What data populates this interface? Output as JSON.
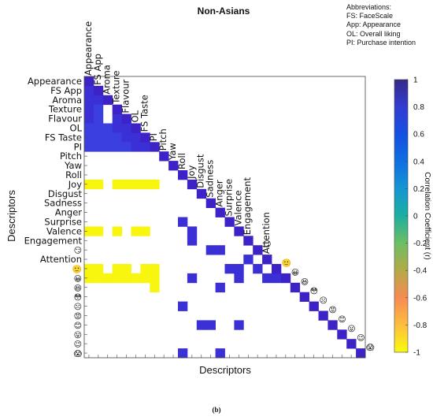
{
  "caption": "(b)",
  "abbreviations": {
    "heading": "Abbreviations:",
    "lines": [
      "FS: FaceScale",
      "App: Appearance",
      "OL: Overall liking",
      "PI: Purchase intention"
    ]
  },
  "chart_data": {
    "type": "heatmap",
    "title": "Non-Asians",
    "xlabel": "Descriptors",
    "ylabel": "Descriptors",
    "colorbar_label": "Correlation Coefficient (r)",
    "colorbar_ticks": [
      "1",
      "0.8",
      "0.6",
      "0.4",
      "0.2",
      "0",
      "-0.2",
      "-0.4",
      "-0.6",
      "-0.8",
      "-1"
    ],
    "clim": [
      -1,
      1
    ],
    "colormap": "parula",
    "descriptors": [
      "Appearance",
      "FS App",
      "Aroma",
      "Texture",
      "Flavour",
      "OL",
      "FS Taste",
      "PI",
      "Pitch",
      "Yaw",
      "Roll",
      "Joy",
      "Disgust",
      "Sadness",
      "Anger",
      "Surprise",
      "Valence",
      "Engagement",
      "emoji-smirk",
      "Attention",
      "emoji-smile",
      "emoji-grin",
      "emoji-laugh",
      "emoji-flushed",
      "emoji-frown",
      "emoji-angry",
      "emoji-smile2",
      "emoji-tongue",
      "emoji-wink",
      "emoji-scream"
    ],
    "emoji_descriptors": {
      "emoji-smirk": "😏",
      "emoji-smile": "🙂",
      "emoji-grin": "😀",
      "emoji-laugh": "😆",
      "emoji-flushed": "😳",
      "emoji-frown": "☹",
      "emoji-angry": "😡",
      "emoji-smile2": "😊",
      "emoji-tongue": "😛",
      "emoji-wink": "😉",
      "emoji-scream": "😱"
    },
    "cells": [
      [
        1,
        0,
        1
      ],
      [
        2,
        0,
        0.95
      ],
      [
        2,
        1,
        0.9
      ],
      [
        3,
        0,
        0.9
      ],
      [
        3,
        1,
        0.85
      ],
      [
        4,
        0,
        0.9
      ],
      [
        4,
        1,
        0.85
      ],
      [
        4,
        3,
        0.9
      ],
      [
        5,
        0,
        0.85
      ],
      [
        5,
        1,
        0.85
      ],
      [
        5,
        2,
        0.85
      ],
      [
        5,
        3,
        0.9
      ],
      [
        5,
        4,
        0.9
      ],
      [
        6,
        0,
        0.85
      ],
      [
        6,
        1,
        0.85
      ],
      [
        6,
        2,
        0.85
      ],
      [
        6,
        3,
        0.85
      ],
      [
        6,
        4,
        0.9
      ],
      [
        6,
        5,
        0.9
      ],
      [
        7,
        0,
        0.85
      ],
      [
        7,
        1,
        0.85
      ],
      [
        7,
        2,
        0.85
      ],
      [
        7,
        3,
        0.85
      ],
      [
        7,
        4,
        0.85
      ],
      [
        7,
        5,
        0.95
      ],
      [
        7,
        6,
        0.9
      ],
      [
        11,
        0,
        -0.95
      ],
      [
        11,
        1,
        -0.95
      ],
      [
        11,
        3,
        -0.95
      ],
      [
        11,
        4,
        -0.95
      ],
      [
        11,
        5,
        -0.95
      ],
      [
        11,
        6,
        -0.95
      ],
      [
        11,
        7,
        -0.95
      ],
      [
        15,
        10,
        0.95
      ],
      [
        16,
        0,
        -0.95
      ],
      [
        16,
        1,
        -0.95
      ],
      [
        16,
        3,
        -0.95
      ],
      [
        16,
        5,
        -0.95
      ],
      [
        16,
        6,
        -0.95
      ],
      [
        16,
        11,
        0.95
      ],
      [
        17,
        11,
        0.95
      ],
      [
        18,
        13,
        0.95
      ],
      [
        18,
        14,
        0.95
      ],
      [
        19,
        17,
        0.95
      ],
      [
        20,
        0,
        -0.95
      ],
      [
        20,
        1,
        -0.95
      ],
      [
        20,
        3,
        -0.95
      ],
      [
        20,
        4,
        -0.95
      ],
      [
        20,
        6,
        -0.95
      ],
      [
        20,
        7,
        -0.95
      ],
      [
        20,
        15,
        0.95
      ],
      [
        20,
        16,
        0.95
      ],
      [
        20,
        18,
        0.95
      ],
      [
        21,
        0,
        -0.95
      ],
      [
        21,
        1,
        -0.95
      ],
      [
        21,
        2,
        -0.95
      ],
      [
        21,
        3,
        -0.95
      ],
      [
        21,
        4,
        -0.95
      ],
      [
        21,
        5,
        -0.95
      ],
      [
        21,
        6,
        -0.95
      ],
      [
        21,
        7,
        -0.95
      ],
      [
        21,
        11,
        0.95
      ],
      [
        21,
        16,
        0.95
      ],
      [
        21,
        19,
        0.95
      ],
      [
        21,
        20,
        0.95
      ],
      [
        22,
        7,
        -0.95
      ],
      [
        22,
        14,
        0.95
      ],
      [
        24,
        10,
        0.95
      ],
      [
        26,
        12,
        0.95
      ],
      [
        26,
        13,
        0.95
      ],
      [
        26,
        16,
        0.95
      ],
      [
        29,
        10,
        0.95
      ],
      [
        29,
        14,
        0.95
      ]
    ]
  }
}
